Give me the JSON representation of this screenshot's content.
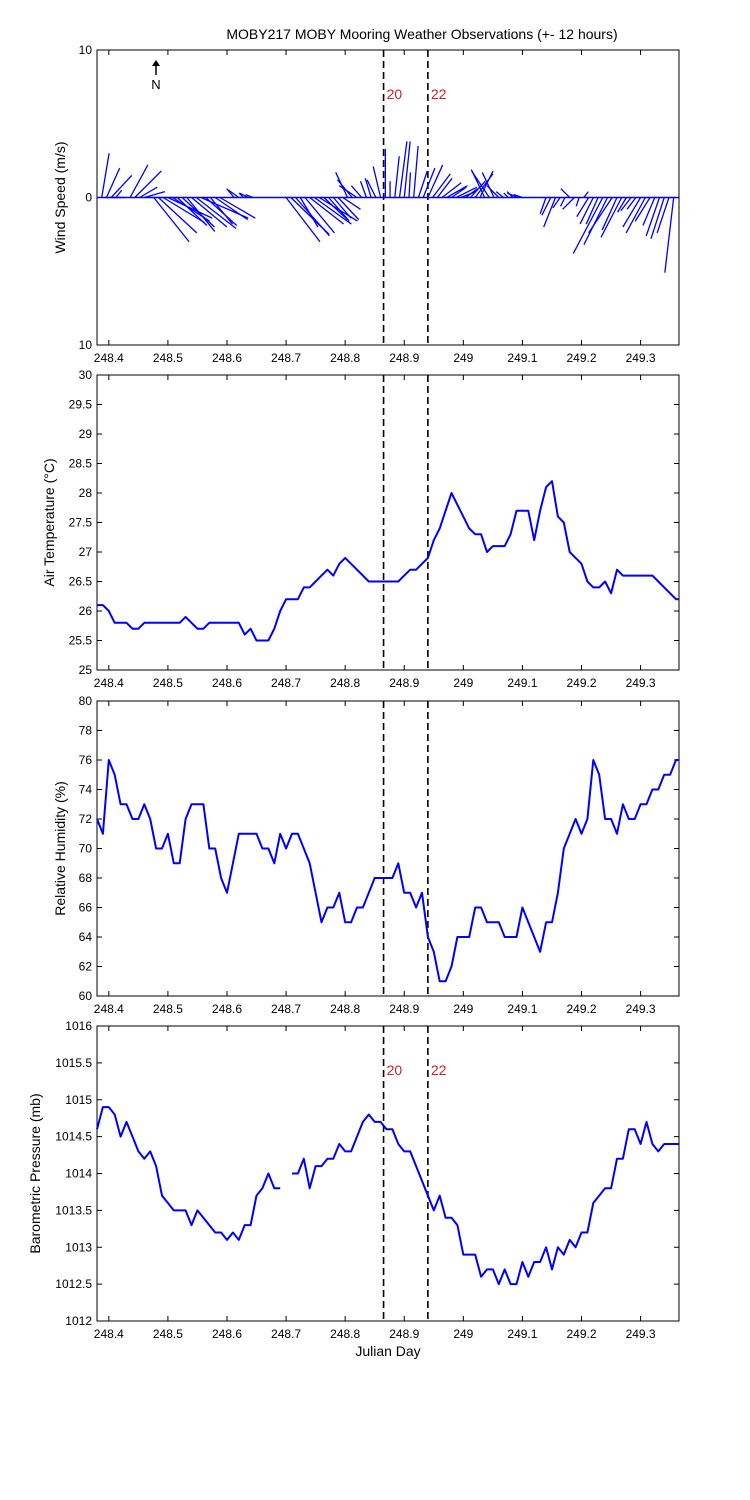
{
  "title": "MOBY217 MOBY Mooring Weather Observations (+- 12 hours)",
  "xlabel": "Julian Day",
  "north_label": "N",
  "xlim": [
    248.38,
    249.365
  ],
  "xticks": [
    248.4,
    248.5,
    248.6,
    248.7,
    248.8,
    248.9,
    249,
    249.1,
    249.2,
    249.3
  ],
  "xtick_labels": [
    "248.4",
    "248.5",
    "248.6",
    "248.7",
    "248.8",
    "248.9",
    "249",
    "249.1",
    "249.2",
    "249.3"
  ],
  "markers": [
    {
      "x": 248.865,
      "label": "20"
    },
    {
      "x": 248.94,
      "label": "22"
    }
  ],
  "colors": {
    "series": "#0000ff",
    "marker_label": "#cc2222",
    "axis": "#000000"
  },
  "chart_data": [
    {
      "id": "wind",
      "type": "vector",
      "ylabel": "Wind Speed (m/s)",
      "ylim": [
        -10,
        10
      ],
      "yticks": [
        10,
        0,
        -10
      ],
      "ytick_labels": [
        "10",
        "0",
        "10"
      ],
      "marker_labels": true,
      "north_arrow": true,
      "t": [
        248.38,
        248.388,
        248.396,
        248.404,
        248.412,
        248.42,
        248.428,
        248.436,
        248.444,
        248.452,
        248.46,
        248.468,
        248.476,
        248.484,
        248.492,
        248.5,
        248.508,
        248.516,
        248.524,
        248.532,
        248.54,
        248.548,
        248.556,
        248.564,
        248.572,
        248.58,
        248.588,
        248.596,
        248.604,
        248.612,
        248.62,
        248.628,
        248.636,
        248.644,
        248.652,
        248.66,
        248.668,
        248.676,
        248.684,
        248.692,
        248.7,
        248.708,
        248.716,
        248.724,
        248.732,
        248.74,
        248.748,
        248.756,
        248.764,
        248.772,
        248.78,
        248.788,
        248.796,
        248.804,
        248.812,
        248.82,
        248.828,
        248.836,
        248.844,
        248.852,
        248.86,
        248.868,
        248.876,
        248.884,
        248.892,
        248.9,
        248.908,
        248.916,
        248.924,
        248.932,
        248.94,
        248.948,
        248.956,
        248.964,
        248.972,
        248.98,
        248.988,
        248.996,
        249.004,
        249.012,
        249.02,
        249.028,
        249.036,
        249.044,
        249.052,
        249.06,
        249.068,
        249.076,
        249.084,
        249.092,
        249.1,
        249.108,
        249.116,
        249.124,
        249.132,
        249.14,
        249.148,
        249.156,
        249.164,
        249.172,
        249.18,
        249.188,
        249.196,
        249.204,
        249.212,
        249.22,
        249.228,
        249.236,
        249.244,
        249.252,
        249.26,
        249.268,
        249.276,
        249.284,
        249.292,
        249.3,
        249.308,
        249.316,
        249.324,
        249.332,
        249.34,
        249.348,
        249.356,
        249.364
      ],
      "u": [
        0.0,
        0.5,
        0.9,
        1.4,
        0.4,
        -1.1,
        -1.2,
        1.2,
        1.8,
        1.2,
        1.4,
        2.0,
        2.4,
        2.6,
        2.8,
        3.0,
        2.5,
        2.0,
        2.2,
        1.9,
        2.4,
        2.7,
        3.2,
        2.1,
        1.5,
        2.2,
        2.4,
        0.0,
        0.0,
        -0.5,
        -0.7,
        -0.3,
        -0.6,
        -0.5,
        0.0,
        0.0,
        0.0,
        0.0,
        0.0,
        0.0,
        2.3,
        2.6,
        2.3,
        1.2,
        2.0,
        2.3,
        2.5,
        2.6,
        1.6,
        1.4,
        1.2,
        1.4,
        1.2,
        -0.8,
        -1.0,
        -1.2,
        -0.7,
        -0.4,
        -0.4,
        -0.6,
        -0.5,
        0.0,
        0.0,
        0.3,
        0.5,
        0.4,
        0.1,
        0.3,
        0.6,
        0.8,
        1.0,
        1.2,
        1.0,
        1.3,
        1.4,
        1.0,
        1.4,
        1.0,
        0.8,
        1.0,
        1.2,
        0.9,
        -0.9,
        -1.2,
        -0.8,
        -0.8,
        -0.5,
        -0.3,
        -0.4,
        -0.7,
        -0.6,
        0.0,
        0.0,
        0.0,
        0.0,
        -0.4,
        -0.6,
        -0.8,
        -0.5,
        -0.3,
        -0.6,
        -0.8,
        -0.2,
        0.3,
        -0.8,
        -0.9,
        -0.8,
        -2.0,
        -1.6,
        -1.6,
        -1.0,
        -1.4,
        -0.6,
        -0.7,
        -0.6,
        -1.2,
        -1.3,
        -1.0,
        -0.8,
        -0.9,
        -0.9,
        -0.8,
        -0.6,
        0.0
      ],
      "v": [
        0.0,
        3.0,
        2.0,
        1.5,
        0.5,
        0.0,
        0.0,
        2.2,
        1.8,
        0.7,
        0.4,
        0.0,
        -3.0,
        -2.4,
        -1.7,
        -1.4,
        -1.6,
        -1.9,
        -2.0,
        -2.3,
        -2.0,
        -2.1,
        -1.4,
        -1.9,
        -1.8,
        -1.5,
        -1.4,
        0.0,
        0.0,
        0.6,
        0.5,
        0.3,
        0.3,
        0.2,
        0.0,
        0.0,
        0.0,
        0.0,
        0.0,
        0.0,
        -3.0,
        -2.5,
        -2.6,
        -2.0,
        -2.4,
        -1.8,
        -1.8,
        -1.6,
        -1.5,
        -1.6,
        -1.4,
        -1.5,
        -0.8,
        1.7,
        1.2,
        0.8,
        0.8,
        1.1,
        1.3,
        1.2,
        2.1,
        3.3,
        1.1,
        2.8,
        3.8,
        3.8,
        1.7,
        3.5,
        1.8,
        2.0,
        2.2,
        1.6,
        1.3,
        1.0,
        0.8,
        0.7,
        0.7,
        0.4,
        0.6,
        1.1,
        1.6,
        1.8,
        1.9,
        1.8,
        1.7,
        0.8,
        0.4,
        0.3,
        0.4,
        0.3,
        0.2,
        0.0,
        0.0,
        0.0,
        0.0,
        -1.1,
        -1.2,
        -2.0,
        -0.7,
        -0.6,
        0.6,
        -0.8,
        -0.6,
        0.4,
        -1.3,
        -1.8,
        -1.8,
        -3.8,
        -3.2,
        -2.4,
        -2.2,
        -2.7,
        -1.0,
        -0.9,
        -0.8,
        -2.0,
        -2.4,
        -1.6,
        -1.9,
        -2.6,
        -2.8,
        -2.4,
        -5.1,
        0.0
      ]
    },
    {
      "id": "air_temp",
      "type": "line",
      "ylabel": "Air Temperature (°C)",
      "ylim": [
        25,
        30
      ],
      "yticks": [
        25,
        25.5,
        26,
        26.5,
        27,
        27.5,
        28,
        28.5,
        29,
        29.5,
        30
      ],
      "ytick_labels": [
        "25",
        "25.5",
        "26",
        "26.5",
        "27",
        "27.5",
        "28",
        "28.5",
        "29",
        "29.5",
        "30"
      ],
      "marker_labels": false,
      "x": [
        248.38,
        248.39,
        248.4,
        248.41,
        248.42,
        248.43,
        248.44,
        248.45,
        248.46,
        248.47,
        248.48,
        248.49,
        248.5,
        248.51,
        248.52,
        248.53,
        248.54,
        248.55,
        248.56,
        248.57,
        248.58,
        248.59,
        248.6,
        248.61,
        248.62,
        248.63,
        248.64,
        248.65,
        248.66,
        248.67,
        248.68,
        248.69,
        248.7,
        248.71,
        248.72,
        248.73,
        248.74,
        248.75,
        248.76,
        248.77,
        248.78,
        248.79,
        248.8,
        248.81,
        248.82,
        248.83,
        248.84,
        248.85,
        248.86,
        248.87,
        248.88,
        248.89,
        248.9,
        248.91,
        248.92,
        248.93,
        248.94,
        248.95,
        248.96,
        248.97,
        248.98,
        248.99,
        249.0,
        249.01,
        249.02,
        249.03,
        249.04,
        249.05,
        249.06,
        249.07,
        249.08,
        249.09,
        249.1,
        249.11,
        249.12,
        249.13,
        249.14,
        249.15,
        249.16,
        249.17,
        249.18,
        249.19,
        249.2,
        249.21,
        249.22,
        249.23,
        249.24,
        249.25,
        249.26,
        249.27,
        249.28,
        249.29,
        249.3,
        249.31,
        249.32,
        249.33,
        249.34,
        249.35,
        249.36,
        249.365
      ],
      "y": [
        26.1,
        26.1,
        26.0,
        25.8,
        25.8,
        25.8,
        25.7,
        25.7,
        25.8,
        25.8,
        25.8,
        25.8,
        25.8,
        25.8,
        25.8,
        25.9,
        25.8,
        25.7,
        25.7,
        25.8,
        25.8,
        25.8,
        25.8,
        25.8,
        25.8,
        25.6,
        25.7,
        25.5,
        25.5,
        25.5,
        25.7,
        26.0,
        26.2,
        26.2,
        26.2,
        26.4,
        26.4,
        26.5,
        26.6,
        26.7,
        26.6,
        26.8,
        26.9,
        26.8,
        26.7,
        26.6,
        26.5,
        26.5,
        26.5,
        26.5,
        26.5,
        26.5,
        26.6,
        26.7,
        26.7,
        26.8,
        26.9,
        27.2,
        27.4,
        27.7,
        28.0,
        27.8,
        27.6,
        27.4,
        27.3,
        27.3,
        27.0,
        27.1,
        27.1,
        27.1,
        27.3,
        27.7,
        27.7,
        27.7,
        27.2,
        27.7,
        28.1,
        28.2,
        27.6,
        27.5,
        27.0,
        26.9,
        26.8,
        26.5,
        26.4,
        26.4,
        26.5,
        26.3,
        26.7,
        26.6,
        26.6,
        26.6,
        26.6,
        26.6,
        26.6,
        26.5,
        26.4,
        26.3,
        26.2,
        26.2
      ]
    },
    {
      "id": "humidity",
      "type": "line",
      "ylabel": "Relative Humidity (%)",
      "ylim": [
        60,
        80
      ],
      "yticks": [
        60,
        62,
        64,
        66,
        68,
        70,
        72,
        74,
        76,
        78,
        80
      ],
      "ytick_labels": [
        "60",
        "62",
        "64",
        "66",
        "68",
        "70",
        "72",
        "74",
        "76",
        "78",
        "80"
      ],
      "marker_labels": false,
      "x": [
        248.38,
        248.39,
        248.4,
        248.41,
        248.42,
        248.43,
        248.44,
        248.45,
        248.46,
        248.47,
        248.48,
        248.49,
        248.5,
        248.51,
        248.52,
        248.53,
        248.54,
        248.55,
        248.56,
        248.57,
        248.58,
        248.59,
        248.6,
        248.61,
        248.62,
        248.63,
        248.64,
        248.65,
        248.66,
        248.67,
        248.68,
        248.69,
        248.7,
        248.71,
        248.72,
        248.73,
        248.74,
        248.75,
        248.76,
        248.77,
        248.78,
        248.79,
        248.8,
        248.81,
        248.82,
        248.83,
        248.84,
        248.85,
        248.86,
        248.87,
        248.88,
        248.89,
        248.9,
        248.91,
        248.92,
        248.93,
        248.94,
        248.95,
        248.96,
        248.97,
        248.98,
        248.99,
        249.0,
        249.01,
        249.02,
        249.03,
        249.04,
        249.05,
        249.06,
        249.07,
        249.08,
        249.09,
        249.1,
        249.11,
        249.12,
        249.13,
        249.14,
        249.15,
        249.16,
        249.17,
        249.18,
        249.19,
        249.2,
        249.21,
        249.22,
        249.23,
        249.24,
        249.25,
        249.26,
        249.27,
        249.28,
        249.29,
        249.3,
        249.31,
        249.32,
        249.33,
        249.34,
        249.35,
        249.36,
        249.365
      ],
      "y": [
        72,
        71,
        76,
        75,
        73,
        73,
        72,
        72,
        73,
        72,
        70,
        70,
        71,
        69,
        69,
        72,
        73,
        73,
        73,
        70,
        70,
        68,
        67,
        69,
        71,
        71,
        71,
        71,
        70,
        70,
        69,
        71,
        70,
        71,
        71,
        70,
        69,
        67,
        65,
        66,
        66,
        67,
        65,
        65,
        66,
        66,
        67,
        68,
        68,
        68,
        68,
        69,
        67,
        67,
        66,
        67,
        64,
        63,
        61,
        61,
        62,
        64,
        64,
        64,
        66,
        66,
        65,
        65,
        65,
        64,
        64,
        64,
        66,
        65,
        64,
        63,
        65,
        65,
        67,
        70,
        71,
        72,
        71,
        72,
        76,
        75,
        72,
        72,
        71,
        73,
        72,
        72,
        73,
        73,
        74,
        74,
        75,
        75,
        76,
        76
      ]
    },
    {
      "id": "pressure",
      "type": "line",
      "ylabel": "Barometric Pressure (mb)",
      "ylim": [
        1012,
        1016
      ],
      "yticks": [
        1012,
        1012.5,
        1013,
        1013.5,
        1014,
        1014.5,
        1015,
        1015.5,
        1016
      ],
      "ytick_labels": [
        "1012",
        "1012.5",
        "1013",
        "1013.5",
        "1014",
        "1014.5",
        "1015",
        "1015.5",
        "1016"
      ],
      "marker_labels": true,
      "segments": [
        {
          "x": [
            248.38,
            248.39,
            248.4,
            248.41,
            248.42,
            248.43,
            248.44,
            248.45,
            248.46,
            248.47,
            248.48,
            248.49,
            248.5,
            248.51,
            248.52,
            248.53,
            248.54,
            248.55,
            248.56,
            248.57,
            248.58,
            248.59,
            248.6,
            248.61,
            248.62,
            248.63,
            248.64,
            248.65,
            248.66,
            248.67,
            248.68,
            248.69
          ],
          "y": [
            1014.6,
            1014.9,
            1014.9,
            1014.8,
            1014.5,
            1014.7,
            1014.5,
            1014.3,
            1014.2,
            1014.3,
            1014.1,
            1013.7,
            1013.6,
            1013.5,
            1013.5,
            1013.5,
            1013.3,
            1013.5,
            1013.4,
            1013.3,
            1013.2,
            1013.2,
            1013.1,
            1013.2,
            1013.1,
            1013.3,
            1013.3,
            1013.7,
            1013.8,
            1014.0,
            1013.8,
            1013.8
          ]
        },
        {
          "x": [
            248.71,
            248.72,
            248.73,
            248.74,
            248.75,
            248.76,
            248.77,
            248.78,
            248.79,
            248.8,
            248.81,
            248.82,
            248.83,
            248.84,
            248.85,
            248.86,
            248.87,
            248.88,
            248.89,
            248.9,
            248.91,
            248.92,
            248.93,
            248.94,
            248.95,
            248.96,
            248.97,
            248.98,
            248.99,
            249.0,
            249.01,
            249.02,
            249.03,
            249.04,
            249.05,
            249.06,
            249.07,
            249.08,
            249.09,
            249.1,
            249.11,
            249.12,
            249.13,
            249.14,
            249.15,
            249.16,
            249.17,
            249.18,
            249.19,
            249.2,
            249.21,
            249.22,
            249.23,
            249.24,
            249.25,
            249.26,
            249.27,
            249.28,
            249.29,
            249.3,
            249.31,
            249.32,
            249.33,
            249.34,
            249.35,
            249.36,
            249.365
          ],
          "y": [
            1014.0,
            1014.0,
            1014.2,
            1013.8,
            1014.1,
            1014.1,
            1014.2,
            1014.2,
            1014.4,
            1014.3,
            1014.3,
            1014.5,
            1014.7,
            1014.8,
            1014.7,
            1014.7,
            1014.6,
            1014.6,
            1014.4,
            1014.3,
            1014.3,
            1014.1,
            1013.9,
            1013.7,
            1013.5,
            1013.7,
            1013.4,
            1013.4,
            1013.3,
            1012.9,
            1012.9,
            1012.9,
            1012.6,
            1012.7,
            1012.7,
            1012.5,
            1012.7,
            1012.5,
            1012.5,
            1012.8,
            1012.6,
            1012.8,
            1012.8,
            1013.0,
            1012.7,
            1013.0,
            1012.9,
            1013.1,
            1013.0,
            1013.2,
            1013.2,
            1013.6,
            1013.7,
            1013.8,
            1013.8,
            1014.2,
            1014.2,
            1014.6,
            1014.6,
            1014.4,
            1014.7,
            1014.4,
            1014.3,
            1014.4,
            1014.4,
            1014.4,
            1014.4
          ]
        }
      ]
    }
  ]
}
